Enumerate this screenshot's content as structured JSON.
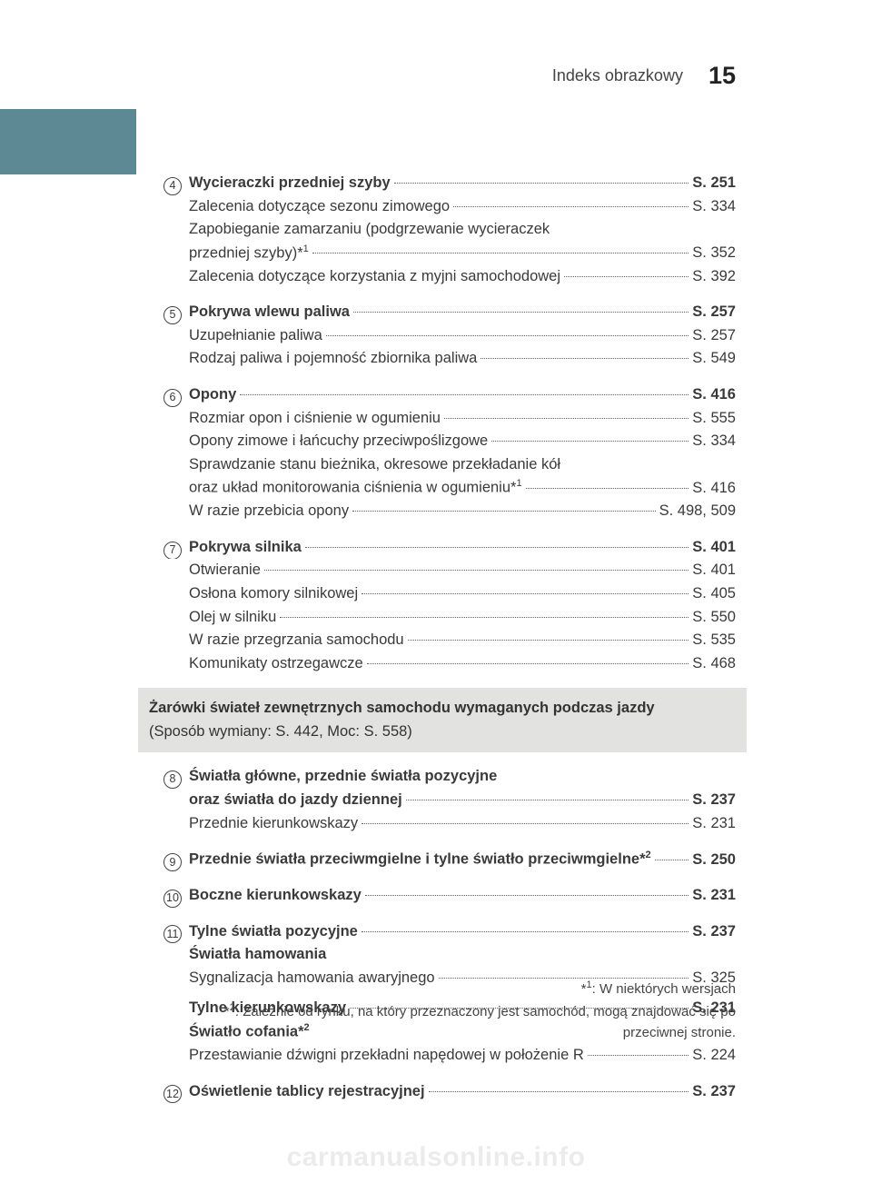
{
  "header": {
    "title": "Indeks obrazkowy",
    "page_number": "15"
  },
  "colors": {
    "accent_block": "#5d8994",
    "gray_bar": "#e2e3e1",
    "text": "#3a3a3a",
    "watermark": "rgba(0,0,0,0.08)"
  },
  "groups_top": [
    {
      "marker": "4",
      "lines": [
        {
          "bold": true,
          "label": "Wycieraczki przedniej szyby ",
          "page": "S. 251"
        },
        {
          "bold": false,
          "label": "Zalecenia dotyczące sezonu zimowego",
          "page": "S. 334"
        },
        {
          "bold": false,
          "wrap1": "Zapobieganie zamarzaniu (podgrzewanie wycieraczek",
          "label": "przedniej szyby)*",
          "sup": "1",
          "page": "S. 352"
        },
        {
          "bold": false,
          "label": "Zalecenia dotyczące korzystania z myjni samochodowej",
          "page": "S. 392"
        }
      ]
    },
    {
      "marker": "5",
      "lines": [
        {
          "bold": true,
          "label": "Pokrywa wlewu paliwa ",
          "page": "S. 257"
        },
        {
          "bold": false,
          "label": "Uzupełnianie paliwa",
          "page": "S. 257"
        },
        {
          "bold": false,
          "label": "Rodzaj paliwa i pojemność zbiornika paliwa ",
          "page": "S. 549"
        }
      ]
    },
    {
      "marker": "6",
      "lines": [
        {
          "bold": true,
          "label": "Opony ",
          "page": "S. 416"
        },
        {
          "bold": false,
          "label": "Rozmiar opon i ciśnienie w ogumieniu ",
          "page": "S. 555"
        },
        {
          "bold": false,
          "label": "Opony zimowe i łańcuchy przeciwpoślizgowe ",
          "page": "S. 334"
        },
        {
          "bold": false,
          "wrap1": "Sprawdzanie stanu bieżnika, okresowe przekładanie kół",
          "label": "oraz układ monitorowania ciśnienia w ogumieniu*",
          "sup": "1",
          "page": "S. 416"
        },
        {
          "bold": false,
          "label": "W razie przebicia opony ",
          "page": "S. 498, 509"
        }
      ]
    },
    {
      "marker": "7",
      "lines": [
        {
          "bold": true,
          "label": "Pokrywa silnika",
          "page": "S. 401"
        },
        {
          "bold": false,
          "label": "Otwieranie ",
          "page": "S. 401"
        },
        {
          "bold": false,
          "label": "Osłona komory silnikowej ",
          "page": "S. 405"
        },
        {
          "bold": false,
          "label": "Olej w silniku ",
          "page": "S. 550"
        },
        {
          "bold": false,
          "label": "W razie przegrzania samochodu ",
          "page": "S. 535"
        },
        {
          "bold": false,
          "label": "Komunikaty ostrzegawcze ",
          "page": "S. 468"
        }
      ]
    }
  ],
  "gray_bar": {
    "title": "Żarówki świateł zewnętrznych samochodu wymaganych podczas jazdy",
    "subtitle": "(Sposób wymiany: S. 442, Moc: S. 558)"
  },
  "groups_bottom": [
    {
      "marker": "8",
      "lines": [
        {
          "bold": true,
          "wrap1": "Światła główne, przednie światła pozycyjne",
          "label": "oraz światła do jazdy dziennej ",
          "page": "S. 237"
        },
        {
          "bold": false,
          "label": "Przednie kierunkowskazy ",
          "page": "S. 231"
        }
      ]
    },
    {
      "marker": "9",
      "lines": [
        {
          "bold": true,
          "label": "Przednie światła przeciwmgielne i tylne światło przeciwmgielne*",
          "sup": "2",
          "after_sup": " ",
          "page": "S. 250"
        }
      ]
    },
    {
      "marker": "10",
      "lines": [
        {
          "bold": true,
          "label": "Boczne kierunkowskazy ",
          "page": "S. 231"
        }
      ]
    },
    {
      "marker": "11",
      "lines": [
        {
          "bold": true,
          "label": "Tylne światła pozycyjne ",
          "page": "S. 237"
        },
        {
          "bold": true,
          "nolead": true,
          "label": "Światła hamowania"
        },
        {
          "bold": false,
          "label": "Sygnalizacja hamowania awaryjnego",
          "page": "S. 325"
        },
        {
          "spacer": true
        },
        {
          "bold": true,
          "label": "Tylne kierunkowskazy",
          "page": "S. 231"
        },
        {
          "bold": true,
          "nolead": true,
          "label": "Światło cofania*",
          "sup": "2"
        },
        {
          "bold": false,
          "label": "Przestawianie dźwigni przekładni napędowej w położenie R ",
          "page": "S. 224"
        }
      ]
    },
    {
      "marker": "12",
      "lines": [
        {
          "bold": true,
          "label": "Oświetlenie tablicy rejestracyjnej ",
          "page": "S. 237"
        }
      ]
    }
  ],
  "footnotes": {
    "f1_pre": "*",
    "f1_sup": "1",
    "f1_text": ": W niektórych wersjach",
    "f2_pre": "*",
    "f2_sup": "2",
    "f2_text": ": Zależnie od rynku, na który przeznaczony jest samochód, mogą znajdować się po przeciwnej stronie."
  },
  "watermark": "carmanualsonline.info"
}
